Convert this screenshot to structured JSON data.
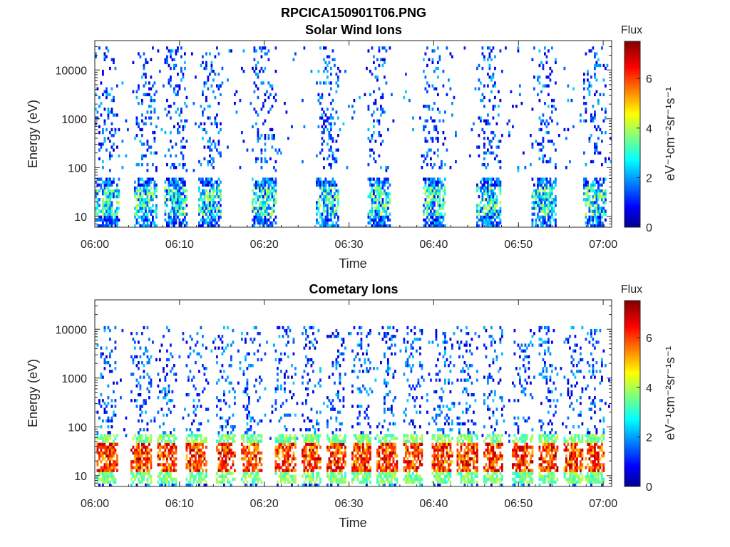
{
  "figure_title": "RPCICA150901T06.PNG",
  "chart_data": [
    {
      "type": "heatmap",
      "title": "Solar Wind Ions",
      "xlabel": "Time",
      "ylabel": "Energy (eV)",
      "y_scale": "log",
      "x_range": [
        "06:00",
        "07:01"
      ],
      "y_range": [
        6,
        40000
      ],
      "x_ticks": [
        "06:00",
        "06:10",
        "06:20",
        "06:30",
        "06:40",
        "06:50",
        "07:00"
      ],
      "y_ticks": [
        "10",
        "100",
        "1000",
        "10000"
      ],
      "colorbar": {
        "label": "Flux",
        "units": "eV⁻¹cm⁻²sr⁻¹s⁻¹",
        "range": [
          0,
          7.5
        ],
        "ticks": [
          "0",
          "2",
          "4",
          "6"
        ],
        "colormap": "jet"
      },
      "pattern": {
        "bursts_min": [
          1.5,
          6,
          9.5,
          13.5,
          20,
          27.5,
          33.5,
          40,
          46.5,
          53,
          59
        ],
        "burst_width_min": 2.8,
        "scattered_energy_eV": [
          100,
          30000
        ],
        "scattered_flux": [
          0.5,
          2.5
        ],
        "core_energy_eV": [
          10,
          40
        ],
        "core_flux": [
          1,
          4.5
        ]
      }
    },
    {
      "type": "heatmap",
      "title": "Cometary Ions",
      "xlabel": "Time",
      "ylabel": "Energy (eV)",
      "y_scale": "log",
      "x_range": [
        "06:00",
        "07:01"
      ],
      "y_range": [
        6,
        40000
      ],
      "x_ticks": [
        "06:00",
        "06:10",
        "06:20",
        "06:30",
        "06:40",
        "06:50",
        "07:00"
      ],
      "y_ticks": [
        "10",
        "100",
        "1000",
        "10000"
      ],
      "colorbar": {
        "label": "Flux",
        "units": "eV⁻¹cm⁻²sr⁻¹s⁻¹",
        "range": [
          0,
          7.5
        ],
        "ticks": [
          "0",
          "2",
          "4",
          "6"
        ],
        "colormap": "jet"
      },
      "pattern": {
        "bursts_min": [
          1.5,
          5.5,
          8.5,
          12,
          15.5,
          18.5,
          22.5,
          25.5,
          28.5,
          31.5,
          34.5,
          37.5,
          41,
          44,
          47,
          50.5,
          53.5,
          56.5,
          59
        ],
        "burst_width_min": 2.4,
        "scattered_energy_eV": [
          60,
          12000
        ],
        "scattered_flux": [
          0.5,
          2.5
        ],
        "core_energy_eV": [
          12,
          45
        ],
        "core_flux": [
          5,
          7.3
        ]
      }
    }
  ]
}
